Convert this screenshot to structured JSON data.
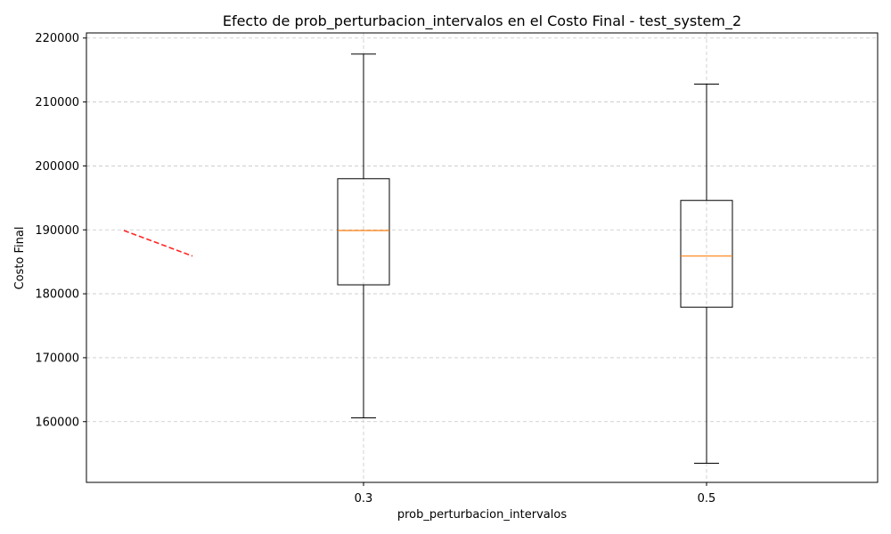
{
  "chart_data": {
    "type": "box",
    "title": "Efecto de prob_perturbacion_intervalos en el Costo Final - test_system_2",
    "xlabel": "prob_perturbacion_intervalos",
    "ylabel": "Costo Final",
    "categories": [
      "0.3",
      "0.5"
    ],
    "boxes": [
      {
        "category": "0.3",
        "whisker_low": 160600,
        "q1": 181400,
        "median": 189900,
        "q3": 198000,
        "whisker_high": 217500
      },
      {
        "category": "0.5",
        "whisker_low": 153500,
        "q1": 177900,
        "median": 185900,
        "q3": 194600,
        "whisker_high": 212800
      }
    ],
    "trend_line": {
      "start": 189900,
      "end": 185900,
      "color": "#ff0000",
      "style": "dashed"
    },
    "ylim": [
      150500,
      220800
    ],
    "yticks": [
      160000,
      170000,
      180000,
      190000,
      200000,
      210000,
      220000
    ],
    "ytick_labels": [
      "160000",
      "170000",
      "180000",
      "190000",
      "200000",
      "210000",
      "220000"
    ],
    "grid": true,
    "colors": {
      "box": "#000000",
      "median": "#ff7f0e",
      "grid": "#c8c8c8"
    }
  }
}
